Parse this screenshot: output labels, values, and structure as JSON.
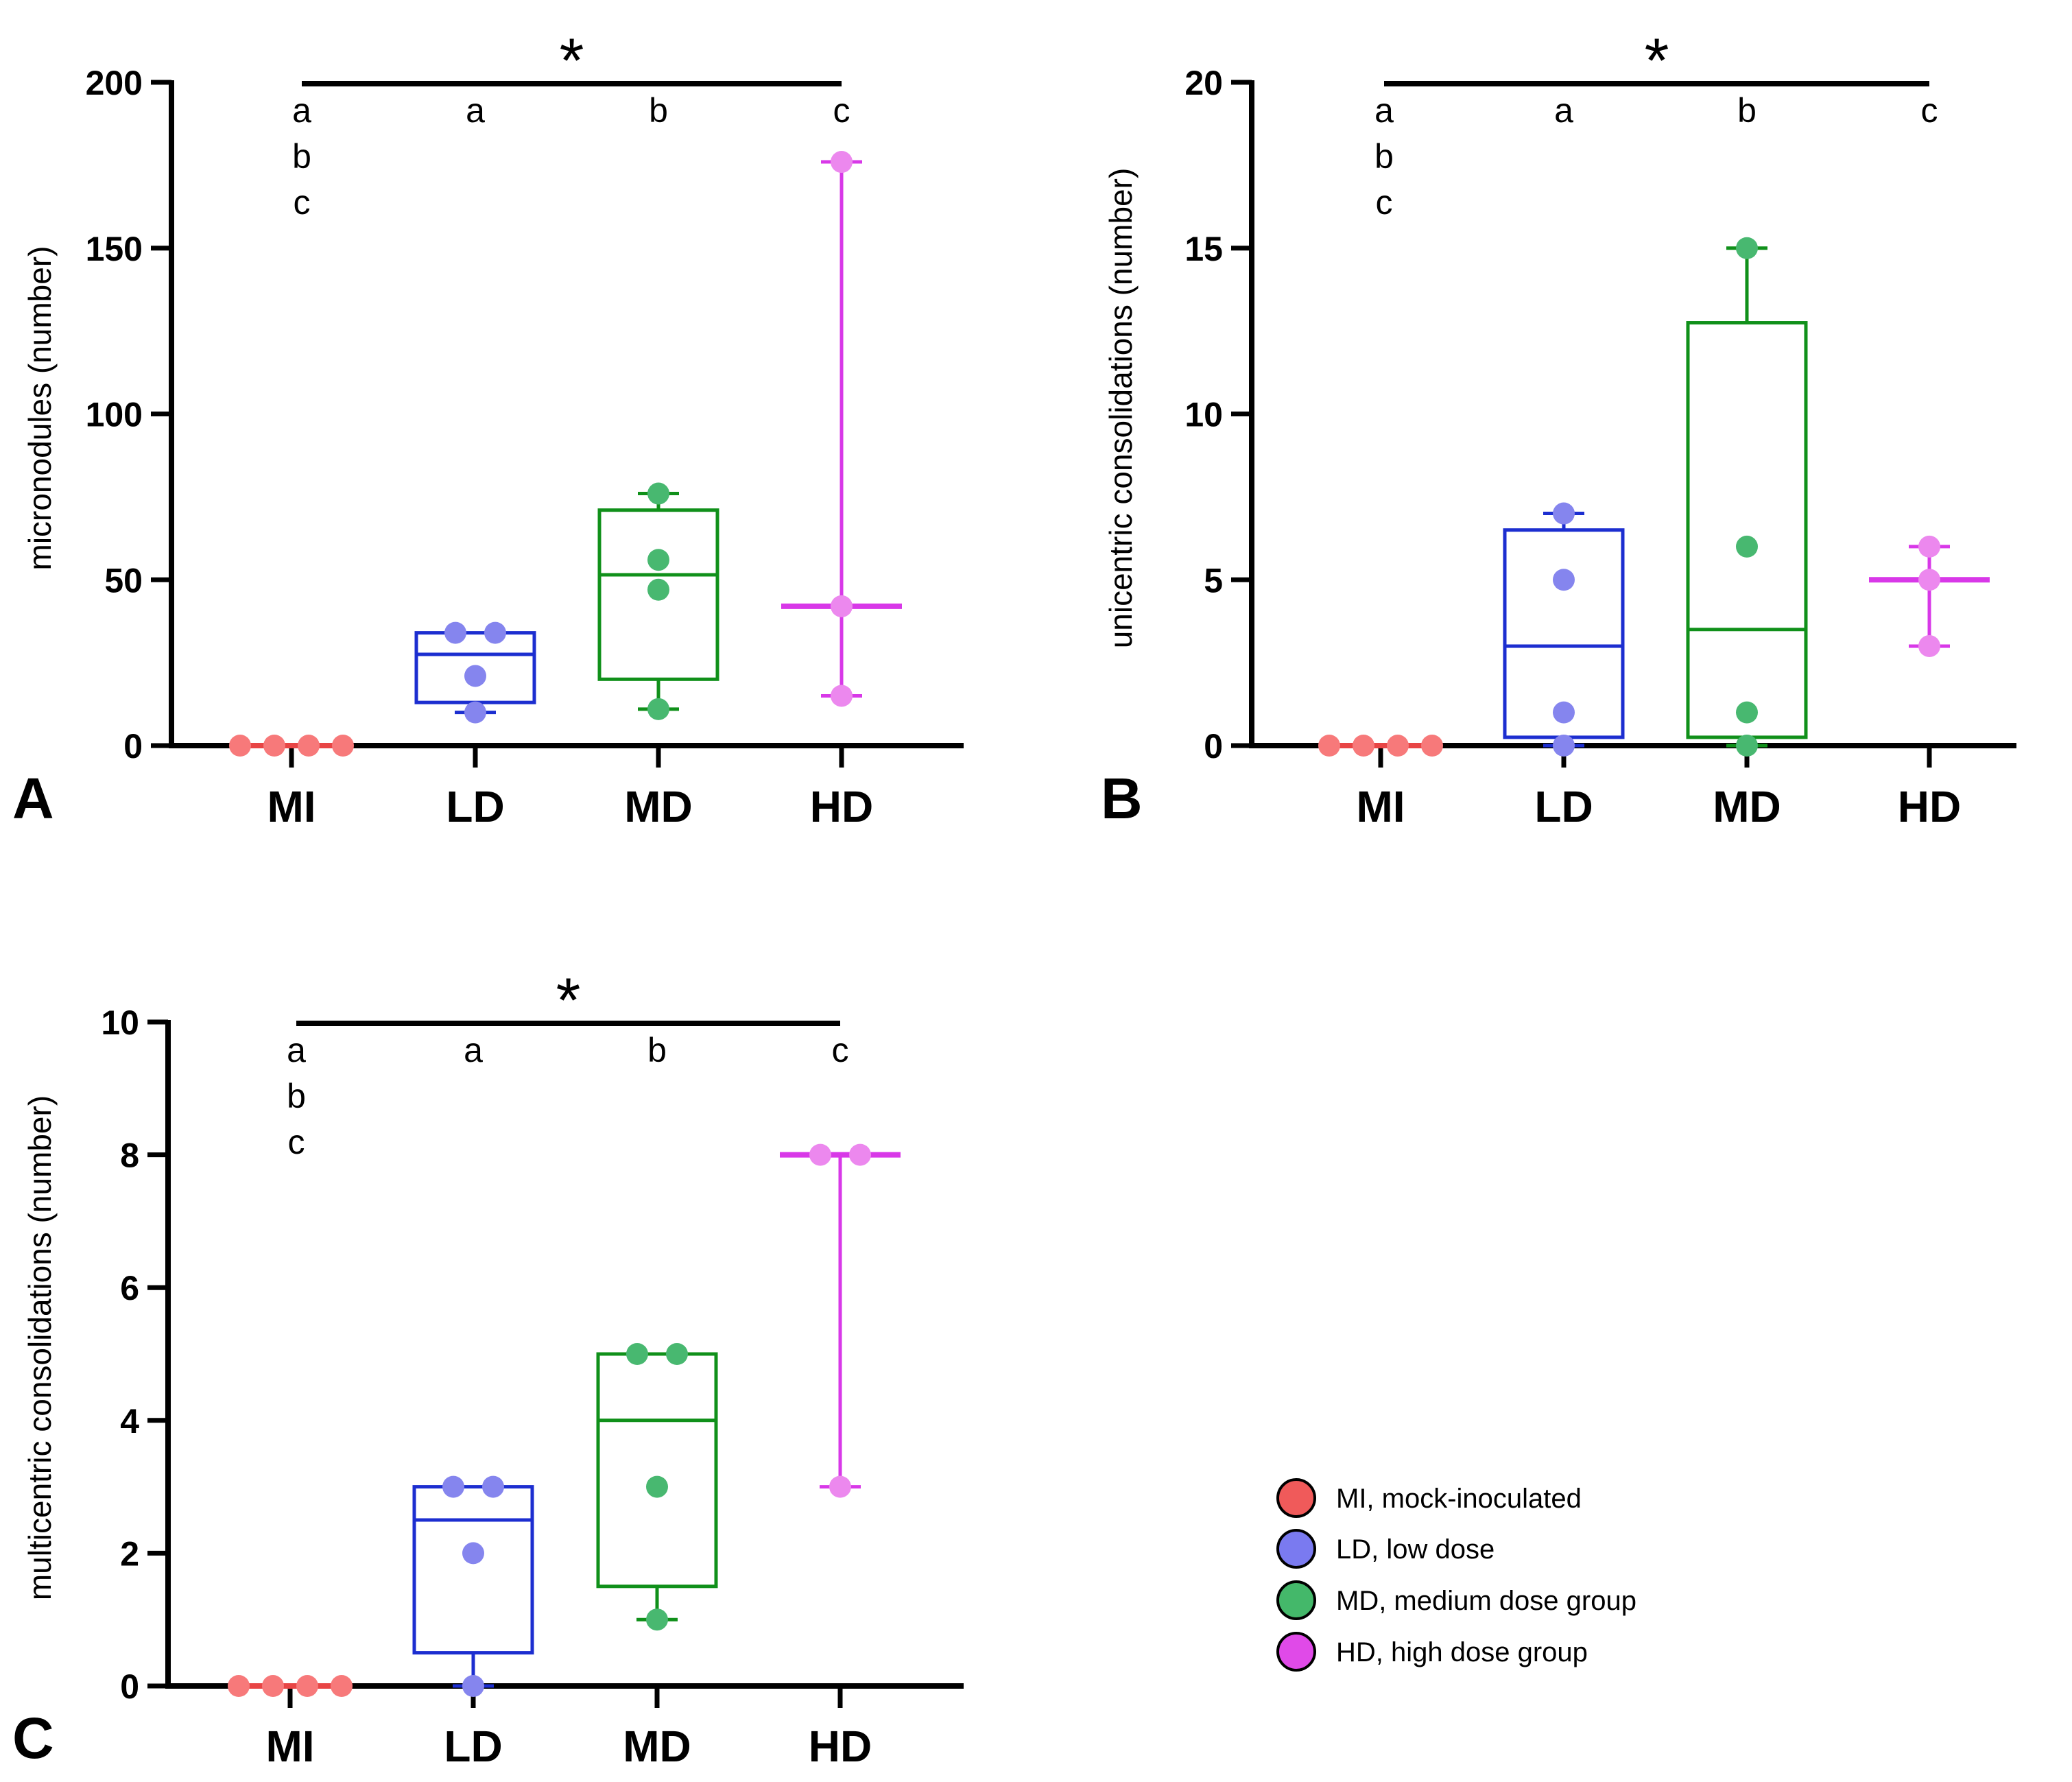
{
  "figure": {
    "categories": [
      "MI",
      "LD",
      "MD",
      "HD"
    ],
    "group_colors": {
      "MI": {
        "point": "#f7797a",
        "box": "#e84545"
      },
      "LD": {
        "point": "#8585ee",
        "box": "#1c2ed0"
      },
      "MD": {
        "point": "#48b870",
        "box": "#10901a"
      },
      "HD": {
        "point": "#ec88ee",
        "box": "#d838e8"
      }
    },
    "significance": {
      "star": "*",
      "letters": {
        "MI": [
          "a",
          "b",
          "c"
        ],
        "LD": [
          "a"
        ],
        "MD": [
          "b"
        ],
        "HD": [
          "c"
        ]
      }
    },
    "legend": {
      "items": [
        {
          "label": "MI, mock-inoculated",
          "color": "#f05a5a"
        },
        {
          "label": "LD, low dose",
          "color": "#7a7af0"
        },
        {
          "label": "MD, medium dose group",
          "color": "#44b86a"
        },
        {
          "label": "HD, high dose group",
          "color": "#e04ae8"
        }
      ]
    }
  },
  "chart_data": [
    {
      "panel": "A",
      "type": "box",
      "ylabel": "micronodules (number)",
      "ylim": [
        0,
        200
      ],
      "yticks": [
        0,
        50,
        100,
        150,
        200
      ],
      "categories": [
        "MI",
        "LD",
        "MD",
        "HD"
      ],
      "groups": [
        {
          "name": "MI",
          "points": [
            0,
            0,
            0,
            0
          ],
          "min": 0,
          "q1": 0,
          "median": 0,
          "q3": 0,
          "max": 0
        },
        {
          "name": "LD",
          "points": [
            10,
            21,
            34,
            34
          ],
          "min": 10,
          "q1": 13,
          "median": 27.5,
          "q3": 34,
          "max": 34
        },
        {
          "name": "MD",
          "points": [
            11,
            47,
            56,
            76
          ],
          "min": 11,
          "q1": 20,
          "median": 51.5,
          "q3": 71,
          "max": 76
        },
        {
          "name": "HD",
          "points": [
            15,
            42,
            176
          ],
          "min": 15,
          "q1": 42,
          "median": 42,
          "q3": 42,
          "max": 176
        }
      ]
    },
    {
      "panel": "B",
      "type": "box",
      "ylabel": "unicentric consolidations (number)",
      "ylim": [
        0,
        20
      ],
      "yticks": [
        0,
        5,
        10,
        15,
        20
      ],
      "categories": [
        "MI",
        "LD",
        "MD",
        "HD"
      ],
      "groups": [
        {
          "name": "MI",
          "points": [
            0,
            0,
            0,
            0
          ],
          "min": 0,
          "q1": 0,
          "median": 0,
          "q3": 0,
          "max": 0
        },
        {
          "name": "LD",
          "points": [
            0,
            1,
            5,
            7
          ],
          "min": 0,
          "q1": 0.25,
          "median": 3,
          "q3": 6.5,
          "max": 7
        },
        {
          "name": "MD",
          "points": [
            0,
            1,
            6,
            15
          ],
          "min": 0,
          "q1": 0.25,
          "median": 3.5,
          "q3": 12.75,
          "max": 15
        },
        {
          "name": "HD",
          "points": [
            3,
            5,
            6
          ],
          "min": 3,
          "q1": 5,
          "median": 5,
          "q3": 5,
          "max": 6
        }
      ]
    },
    {
      "panel": "C",
      "type": "box",
      "ylabel": "multicentric consolidations (number)",
      "ylim": [
        0,
        10
      ],
      "yticks": [
        0,
        2,
        4,
        6,
        8,
        10
      ],
      "categories": [
        "MI",
        "LD",
        "MD",
        "HD"
      ],
      "groups": [
        {
          "name": "MI",
          "points": [
            0,
            0,
            0,
            0
          ],
          "min": 0,
          "q1": 0,
          "median": 0,
          "q3": 0,
          "max": 0
        },
        {
          "name": "LD",
          "points": [
            0,
            2,
            3,
            3
          ],
          "min": 0,
          "q1": 0.5,
          "median": 2.5,
          "q3": 3,
          "max": 3
        },
        {
          "name": "MD",
          "points": [
            1,
            3,
            5,
            5
          ],
          "min": 1,
          "q1": 1.5,
          "median": 4,
          "q3": 5,
          "max": 5
        },
        {
          "name": "HD",
          "points": [
            3,
            8,
            8
          ],
          "min": 3,
          "q1": 8,
          "median": 8,
          "q3": 8,
          "max": 8
        }
      ]
    }
  ]
}
